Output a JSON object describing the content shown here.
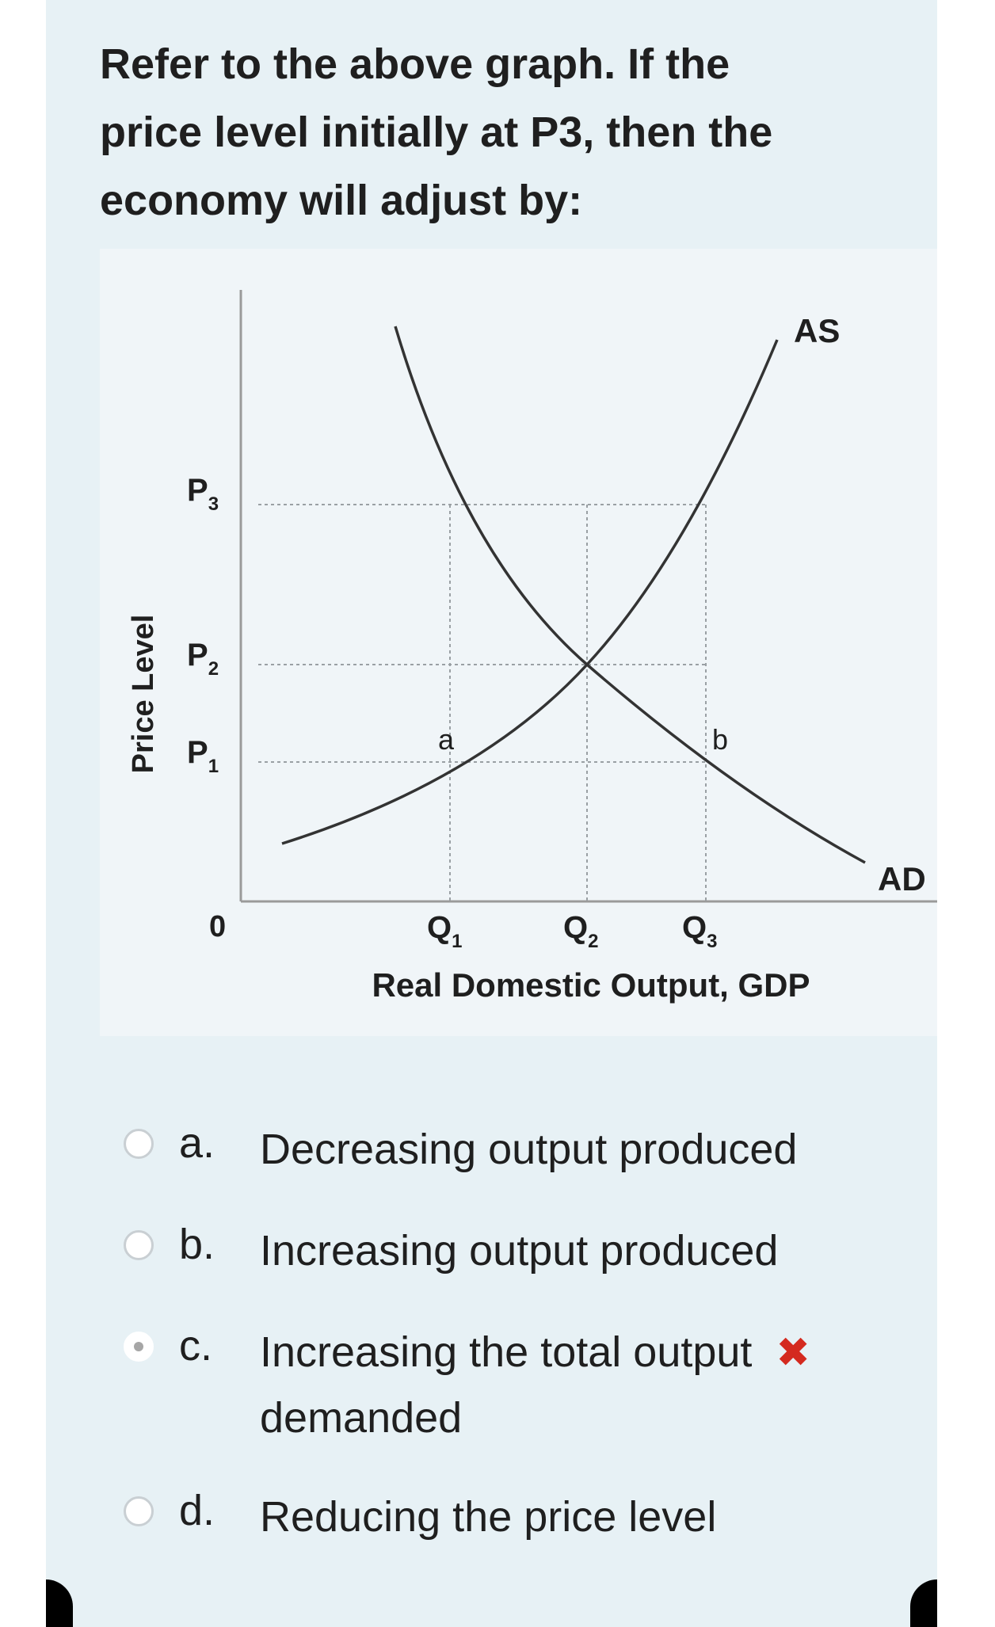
{
  "question": {
    "line1": "Refer to the above graph. If the",
    "line2": "price level initially at P3, then the",
    "line3": "economy will adjust by:"
  },
  "graph": {
    "y_axis_label": "Price Level",
    "x_axis_label": "Real Domestic Output, GDP",
    "origin_label": "0",
    "price_labels": [
      {
        "main": "P",
        "sub": "3"
      },
      {
        "main": "P",
        "sub": "2"
      },
      {
        "main": "P",
        "sub": "1"
      }
    ],
    "quantity_labels": [
      {
        "main": "Q",
        "sub": "1"
      },
      {
        "main": "Q",
        "sub": "2"
      },
      {
        "main": "Q",
        "sub": "3"
      }
    ],
    "curve_as_label": "AS",
    "curve_ad_label": "AD",
    "point_a_label": "a",
    "point_b_label": "b",
    "colors": {
      "curve": "#333333",
      "guide": "#9aa0a4",
      "axis": "#9a9a9a"
    }
  },
  "options": [
    {
      "letter": "a.",
      "line1": "Decreasing output produced",
      "line2": "",
      "selected": false,
      "mark": ""
    },
    {
      "letter": "b.",
      "line1": "Increasing output produced",
      "line2": "",
      "selected": false,
      "mark": ""
    },
    {
      "letter": "c.",
      "line1": "Increasing the total output",
      "line2": "demanded",
      "selected": true,
      "mark": "✖"
    },
    {
      "letter": "d.",
      "line1": "Reducing the price level",
      "line2": "",
      "selected": false,
      "mark": ""
    }
  ],
  "colors": {
    "card_bg": "#e7f1f5",
    "wrong": "#d42a1f"
  }
}
